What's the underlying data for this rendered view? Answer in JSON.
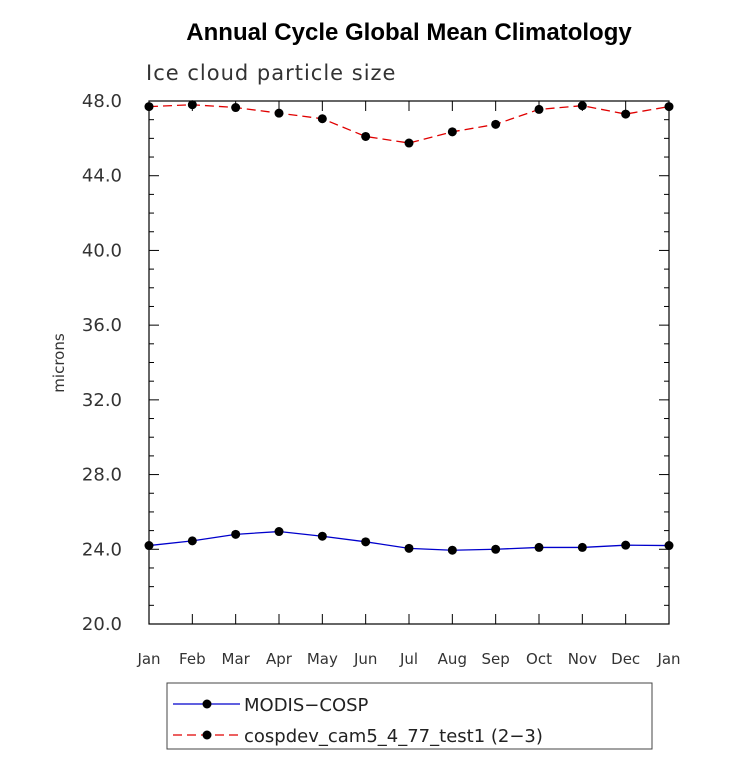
{
  "chart_data": {
    "type": "line",
    "title": "Annual Cycle Global Mean Climatology",
    "subtitle": "Ice cloud particle size",
    "ylabel": "microns",
    "xlabel": "",
    "categories": [
      "Jan",
      "Feb",
      "Mar",
      "Apr",
      "May",
      "Jun",
      "Jul",
      "Aug",
      "Sep",
      "Oct",
      "Nov",
      "Dec",
      "Jan"
    ],
    "ylim": [
      20.0,
      48.0
    ],
    "y_ticks": [
      "20.0",
      "24.0",
      "28.0",
      "32.0",
      "36.0",
      "40.0",
      "44.0",
      "48.0"
    ],
    "y_tick_values": [
      20,
      24,
      28,
      32,
      36,
      40,
      44,
      48
    ],
    "grid": false,
    "legend_position": "bottom",
    "series": [
      {
        "name": "MODIS−COSP",
        "color": "#0000cc",
        "line_style": "solid",
        "marker": "filled-circle",
        "values": [
          24.2,
          24.45,
          24.8,
          24.95,
          24.7,
          24.4,
          24.05,
          23.95,
          24.0,
          24.1,
          24.1,
          24.22,
          24.2
        ]
      },
      {
        "name": "cospdev_cam5_4_77_test1 (2−3)",
        "color": "#e00000",
        "line_style": "dashed",
        "marker": "filled-circle",
        "values": [
          47.7,
          47.8,
          47.65,
          47.35,
          47.05,
          46.1,
          45.75,
          46.35,
          46.75,
          47.55,
          47.75,
          47.3,
          47.7
        ]
      }
    ]
  }
}
